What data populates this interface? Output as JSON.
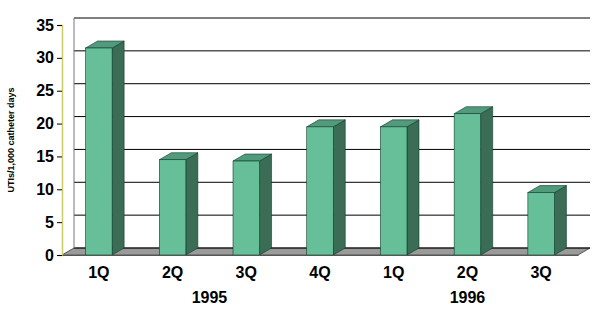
{
  "chart_data": {
    "type": "bar",
    "y_label": "UTIs/1,000 catheter days",
    "categories": [
      "1Q",
      "2Q",
      "3Q",
      "4Q",
      "1Q",
      "2Q",
      "3Q"
    ],
    "category_groups": [
      "1995",
      "1995",
      "1995",
      "1995",
      "1996",
      "1996",
      "1996"
    ],
    "values": [
      31.5,
      14.5,
      14.3,
      19.5,
      19.5,
      21.5,
      9.5
    ],
    "color": "#66bf99",
    "ylim": [
      0,
      35
    ],
    "yticks": [
      0,
      5,
      10,
      15,
      20,
      25,
      30,
      35
    ],
    "grid": true
  }
}
